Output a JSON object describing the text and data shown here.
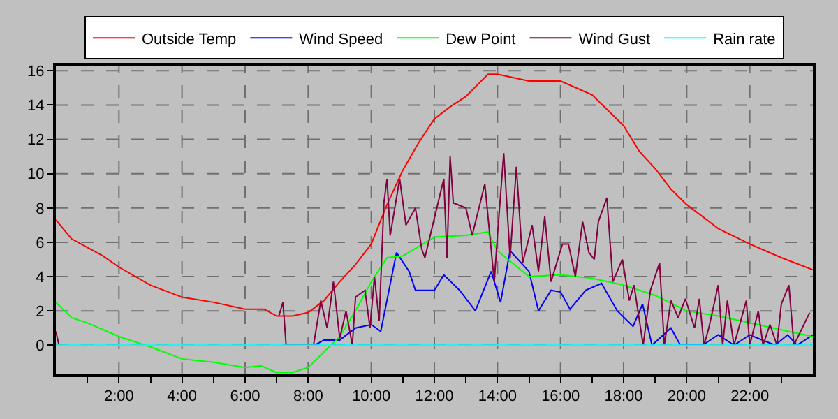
{
  "chart_data": {
    "type": "line",
    "xlim": [
      0,
      24
    ],
    "ylim": [
      -1.7,
      16.3
    ],
    "xticks": [
      {
        "value": 1,
        "label": null
      },
      {
        "value": 2,
        "label": "2:00"
      },
      {
        "value": 3,
        "label": null
      },
      {
        "value": 4,
        "label": "4:00"
      },
      {
        "value": 5,
        "label": null
      },
      {
        "value": 6,
        "label": "6:00"
      },
      {
        "value": 7,
        "label": null
      },
      {
        "value": 8,
        "label": "8:00"
      },
      {
        "value": 9,
        "label": null
      },
      {
        "value": 10,
        "label": "10:00"
      },
      {
        "value": 11,
        "label": null
      },
      {
        "value": 12,
        "label": "12:00"
      },
      {
        "value": 13,
        "label": null
      },
      {
        "value": 14,
        "label": "14:00"
      },
      {
        "value": 15,
        "label": null
      },
      {
        "value": 16,
        "label": "16:00"
      },
      {
        "value": 17,
        "label": null
      },
      {
        "value": 18,
        "label": "18:00"
      },
      {
        "value": 19,
        "label": null
      },
      {
        "value": 20,
        "label": "20:00"
      },
      {
        "value": 21,
        "label": null
      },
      {
        "value": 22,
        "label": "22:00"
      },
      {
        "value": 23,
        "label": null
      }
    ],
    "yticks": [
      0,
      2,
      4,
      6,
      8,
      10,
      12,
      14,
      16
    ],
    "grid": true,
    "legend": "top",
    "marker": "none",
    "line_style": "solid",
    "series": [
      {
        "name": "Outside Temp",
        "color": "#ff0000",
        "x": [
          0,
          0.5,
          1,
          1.5,
          2,
          3,
          4,
          5,
          6,
          6.6,
          7,
          7.5,
          8,
          8.5,
          9,
          9.5,
          10,
          10.5,
          11,
          11.5,
          12,
          12.5,
          13,
          13.7,
          14,
          15,
          16,
          17,
          18,
          18.5,
          19,
          19.5,
          20,
          21,
          22,
          23,
          24
        ],
        "values": [
          7.3,
          6.2,
          5.7,
          5.2,
          4.55,
          3.5,
          2.8,
          2.5,
          2.1,
          2.1,
          1.7,
          1.7,
          1.9,
          2.6,
          3.7,
          4.7,
          5.9,
          8.2,
          10.2,
          11.8,
          13.2,
          13.9,
          14.5,
          15.8,
          15.8,
          15.4,
          15.4,
          14.6,
          12.8,
          11.3,
          10.3,
          9.1,
          8.2,
          6.8,
          5.9,
          5.1,
          4.4
        ]
      },
      {
        "name": "Wind Speed",
        "color": "#0000ff",
        "x": [
          8.2,
          8.5,
          9,
          9.5,
          10,
          10.3,
          10.8,
          11.2,
          11.4,
          12,
          12.3,
          12.8,
          13.3,
          13.8,
          14.1,
          14.4,
          15,
          15.3,
          15.7,
          16,
          16.3,
          16.8,
          17.3,
          17.8,
          18.3,
          18.6,
          18.9,
          19.5,
          19.8,
          20.5,
          21,
          21.5,
          22,
          22.8,
          23.2,
          23.5,
          24
        ],
        "values": [
          0,
          0.3,
          0.3,
          1.0,
          1.2,
          0.8,
          5.4,
          4.3,
          3.2,
          3.2,
          4.1,
          3.2,
          2.0,
          4.3,
          2.5,
          5.5,
          4.3,
          2.0,
          3.2,
          3.1,
          2.1,
          3.2,
          3.6,
          2.0,
          1.1,
          2.4,
          0,
          1.0,
          0,
          0,
          0.6,
          0,
          0.6,
          0,
          0.6,
          0,
          0.6
        ]
      },
      {
        "name": "Dew Point",
        "color": "#00ff00",
        "x": [
          0,
          0.5,
          1,
          1.5,
          2,
          3,
          4,
          5,
          6,
          6.5,
          7,
          7.5,
          8,
          8.5,
          9,
          9.5,
          10,
          10.5,
          11,
          12,
          13,
          13.7,
          14,
          15,
          16,
          17,
          18,
          19,
          20,
          21,
          22,
          23,
          24
        ],
        "values": [
          2.5,
          1.6,
          1.3,
          0.9,
          0.5,
          -0.1,
          -0.8,
          -1.0,
          -1.3,
          -1.2,
          -1.6,
          -1.6,
          -1.3,
          -0.4,
          0.5,
          2.0,
          3.7,
          5.1,
          5.2,
          6.3,
          6.4,
          6.6,
          5.5,
          4.0,
          4.1,
          3.9,
          3.5,
          2.9,
          2.0,
          1.7,
          1.3,
          0.9,
          0.5
        ]
      },
      {
        "name": "Wind Gust",
        "color": "#800040",
        "x": [
          0,
          0.1,
          0.2,
          7.07,
          7.2,
          7.3,
          8.17,
          8.4,
          8.6,
          8.8,
          9.0,
          9.2,
          9.4,
          9.5,
          9.8,
          9.96,
          10.1,
          10.25,
          10.4,
          10.5,
          10.6,
          10.9,
          11.1,
          11.4,
          11.6,
          11.7,
          12.3,
          12.4,
          12.5,
          12.6,
          13.0,
          13.2,
          13.6,
          13.9,
          14.0,
          14.2,
          14.4,
          14.6,
          14.8,
          15.1,
          15.3,
          15.5,
          15.7,
          16.06,
          16.25,
          16.47,
          16.7,
          16.9,
          17.07,
          17.2,
          17.47,
          17.66,
          17.96,
          18.18,
          18.33,
          18.62,
          18.85,
          19.14,
          19.29,
          19.5,
          19.73,
          19.96,
          20.25,
          20.4,
          20.55,
          20.7,
          21.0,
          21.14,
          21.29,
          21.5,
          21.89,
          22.0,
          22.27,
          22.42,
          22.64,
          22.86,
          23.0,
          23.24,
          23.4,
          23.9
        ],
        "values": [
          0.8,
          0,
          null,
          1.7,
          2.5,
          0,
          0,
          2.6,
          1.0,
          3.7,
          0.4,
          2.0,
          0,
          2.8,
          3.2,
          1.0,
          4.0,
          1.4,
          8.3,
          9.7,
          6.4,
          9.7,
          7.0,
          8.0,
          5.6,
          5.1,
          9.7,
          5.1,
          11.0,
          8.3,
          8.0,
          6.4,
          9.4,
          3.7,
          6.4,
          11.2,
          5.1,
          10.4,
          4.8,
          7.0,
          4.3,
          7.5,
          3.7,
          5.9,
          5.9,
          4.0,
          7.2,
          5.4,
          5.0,
          7.2,
          8.6,
          3.7,
          5.0,
          2.6,
          3.5,
          0,
          3.2,
          4.8,
          0,
          2.6,
          1.6,
          2.7,
          1.0,
          2.7,
          0,
          1.0,
          3.5,
          0,
          2.6,
          0,
          2.6,
          0,
          2.0,
          0,
          1.2,
          0,
          2.4,
          3.5,
          0,
          1.9
        ]
      },
      {
        "name": "Rain rate",
        "color": "#00ffff",
        "x": [
          0,
          24
        ],
        "values": [
          0,
          0
        ]
      }
    ]
  }
}
